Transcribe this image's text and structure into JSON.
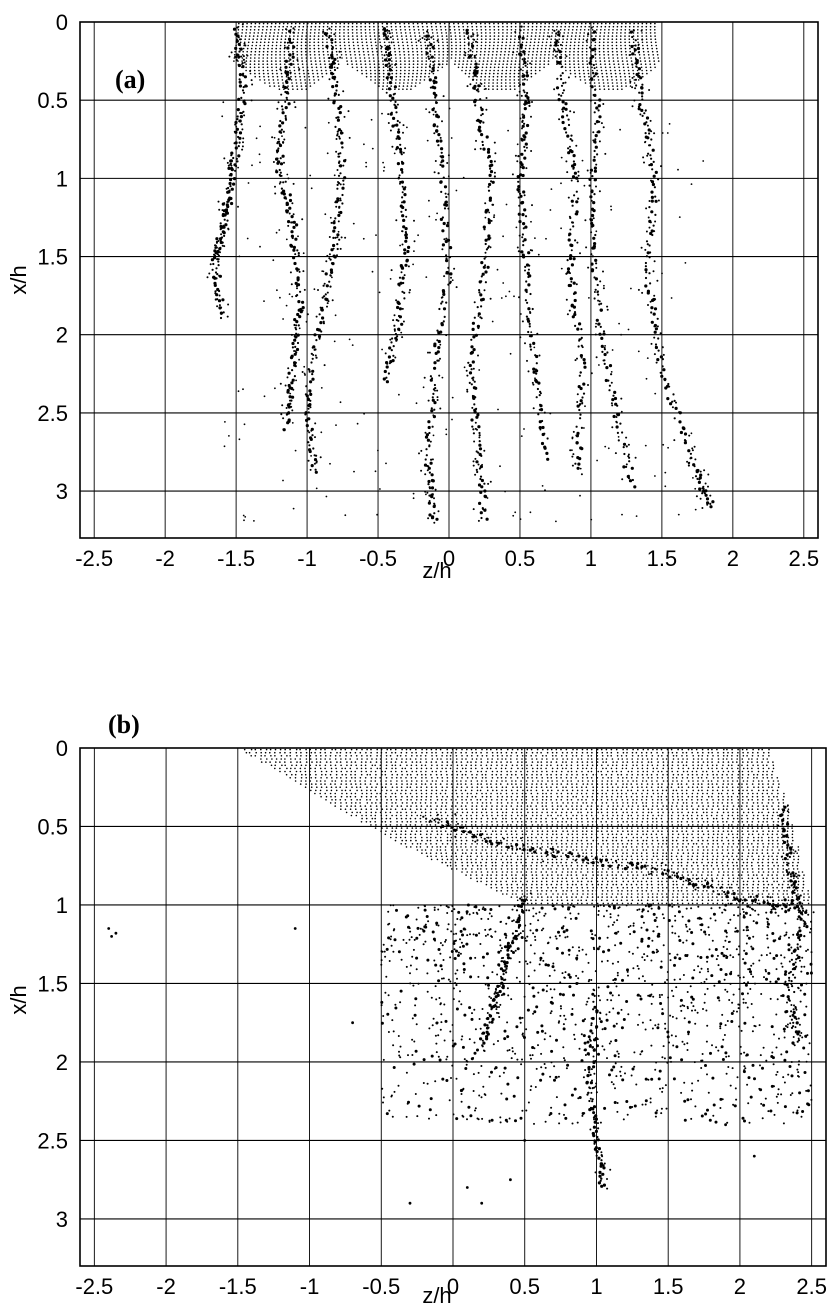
{
  "chart_data": [
    {
      "type": "scatter",
      "panel_label": "(a)",
      "xlabel": "z/h",
      "ylabel": "x/h",
      "xlim": [
        -2.6,
        2.6
      ],
      "ylim": [
        3.3,
        0
      ],
      "x_ticks": [
        "-2.5",
        "-2",
        "-1.5",
        "-1",
        "-0.5",
        "0",
        "0.5",
        "1",
        "1.5",
        "2",
        "2.5"
      ],
      "y_ticks": [
        "0",
        "0.5",
        "1",
        "1.5",
        "2",
        "2.5",
        "3"
      ],
      "grid": true,
      "release_zone": {
        "z_start": -1.5,
        "z_end": 1.5,
        "x_start": 0,
        "x_end": 0.45
      },
      "streaks": [
        {
          "points": [
            [
              -1.5,
              0.05
            ],
            [
              -1.45,
              0.4
            ],
            [
              -1.5,
              0.8
            ],
            [
              -1.55,
              1.1
            ],
            [
              -1.6,
              1.35
            ],
            [
              -1.65,
              1.55
            ],
            [
              -1.6,
              1.9
            ]
          ]
        },
        {
          "points": [
            [
              -1.1,
              0.05
            ],
            [
              -1.15,
              0.5
            ],
            [
              -1.2,
              0.9
            ],
            [
              -1.1,
              1.3
            ],
            [
              -1.05,
              1.8
            ],
            [
              -1.1,
              2.2
            ],
            [
              -1.15,
              2.6
            ]
          ]
        },
        {
          "points": [
            [
              -0.85,
              0.05
            ],
            [
              -0.8,
              0.4
            ],
            [
              -0.75,
              0.9
            ],
            [
              -0.8,
              1.4
            ],
            [
              -0.9,
              1.9
            ],
            [
              -1.0,
              2.4
            ],
            [
              -0.95,
              2.9
            ]
          ]
        },
        {
          "points": [
            [
              -0.45,
              0.05
            ],
            [
              -0.4,
              0.45
            ],
            [
              -0.35,
              0.9
            ],
            [
              -0.3,
              1.4
            ],
            [
              -0.35,
              1.9
            ],
            [
              -0.45,
              2.3
            ]
          ]
        },
        {
          "points": [
            [
              -0.15,
              0.05
            ],
            [
              -0.1,
              0.5
            ],
            [
              -0.05,
              1.0
            ],
            [
              0.0,
              1.6
            ],
            [
              -0.1,
              2.2
            ],
            [
              -0.15,
              2.8
            ],
            [
              -0.1,
              3.2
            ]
          ]
        },
        {
          "points": [
            [
              0.15,
              0.05
            ],
            [
              0.2,
              0.5
            ],
            [
              0.3,
              1.0
            ],
            [
              0.25,
              1.6
            ],
            [
              0.15,
              2.2
            ],
            [
              0.2,
              2.7
            ],
            [
              0.25,
              3.2
            ]
          ]
        },
        {
          "points": [
            [
              0.5,
              0.05
            ],
            [
              0.55,
              0.5
            ],
            [
              0.5,
              1.0
            ],
            [
              0.55,
              1.6
            ],
            [
              0.6,
              2.2
            ],
            [
              0.7,
              2.8
            ]
          ]
        },
        {
          "points": [
            [
              0.75,
              0.05
            ],
            [
              0.8,
              0.5
            ],
            [
              0.9,
              1.0
            ],
            [
              0.85,
              1.6
            ],
            [
              0.95,
              2.2
            ],
            [
              0.9,
              2.9
            ]
          ]
        },
        {
          "points": [
            [
              1.0,
              0.05
            ],
            [
              1.05,
              0.6
            ],
            [
              1.0,
              1.2
            ],
            [
              1.05,
              1.8
            ],
            [
              1.15,
              2.4
            ],
            [
              1.3,
              3.0
            ]
          ]
        },
        {
          "points": [
            [
              1.3,
              0.05
            ],
            [
              1.35,
              0.5
            ],
            [
              1.45,
              1.0
            ],
            [
              1.4,
              1.6
            ],
            [
              1.5,
              2.2
            ],
            [
              1.7,
              2.8
            ],
            [
              1.85,
              3.1
            ]
          ]
        }
      ]
    },
    {
      "type": "scatter",
      "panel_label": "(b)",
      "xlabel": "z/h",
      "ylabel": "x/h",
      "xlim": [
        -2.6,
        2.6
      ],
      "ylim": [
        3.3,
        0
      ],
      "x_ticks": [
        "-2.5",
        "-2",
        "-1.5",
        "-1",
        "-0.5",
        "0",
        "0.5",
        "1",
        "1.5",
        "2",
        "2.5"
      ],
      "y_ticks": [
        "0",
        "0.5",
        "1",
        "1.5",
        "2",
        "2.5",
        "3"
      ],
      "grid": true,
      "release_zone": {
        "polygon": [
          [
            -1.5,
            0
          ],
          [
            2.2,
            0
          ],
          [
            2.35,
            0.4
          ],
          [
            2.5,
            1.0
          ],
          [
            0.5,
            1.0
          ],
          [
            -0.4,
            0.6
          ]
        ]
      },
      "streaks": [
        {
          "points": [
            [
              -0.2,
              0.45
            ],
            [
              0.3,
              0.6
            ],
            [
              0.9,
              0.7
            ],
            [
              1.5,
              0.8
            ],
            [
              2.0,
              0.95
            ],
            [
              2.4,
              1.0
            ]
          ]
        },
        {
          "points": [
            [
              2.3,
              0.4
            ],
            [
              2.35,
              0.8
            ],
            [
              2.45,
              1.1
            ],
            [
              2.35,
              1.5
            ],
            [
              2.4,
              1.9
            ]
          ]
        },
        {
          "points": [
            [
              0.5,
              0.95
            ],
            [
              0.4,
              1.3
            ],
            [
              0.3,
              1.6
            ],
            [
              0.2,
              1.9
            ]
          ]
        },
        {
          "points": [
            [
              1.0,
              1.6
            ],
            [
              0.95,
              2.1
            ],
            [
              1.0,
              2.5
            ],
            [
              1.05,
              2.8
            ]
          ]
        }
      ],
      "scatter_region": {
        "z_range": [
          -0.5,
          2.5
        ],
        "x_range": [
          1.0,
          2.4
        ],
        "count": 1400
      },
      "extra_points": [
        [
          -2.4,
          1.15
        ],
        [
          -2.38,
          1.2
        ],
        [
          -2.35,
          1.18
        ],
        [
          -1.1,
          1.15
        ],
        [
          -0.7,
          1.75
        ],
        [
          0.2,
          2.9
        ],
        [
          0.4,
          2.75
        ],
        [
          0.1,
          2.8
        ],
        [
          -0.3,
          2.9
        ],
        [
          0.5,
          2.5
        ],
        [
          1.9,
          2.4
        ],
        [
          2.1,
          2.6
        ]
      ]
    }
  ]
}
